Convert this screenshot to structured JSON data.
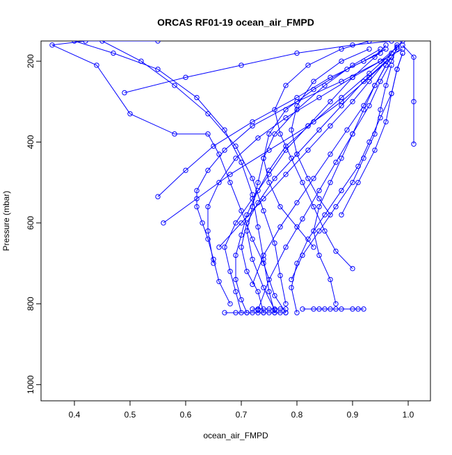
{
  "chart_data": {
    "type": "scatter",
    "title": "ORCAS RF01-19 ocean_air_FMPD",
    "xlabel": "ocean_air_FMPD",
    "ylabel": "Pressure (mbar)",
    "xlim": [
      0.34,
      1.04
    ],
    "ylim": [
      1040,
      150
    ],
    "y_reversed": true,
    "grid": false,
    "legend": "none",
    "marker": "open-circle",
    "connected_points": true,
    "color": "#0000ff",
    "x_ticks": [
      "0.4",
      "0.5",
      "0.6",
      "0.7",
      "0.8",
      "0.9",
      "1.0"
    ],
    "x_tick_values": [
      0.4,
      0.5,
      0.6,
      0.7,
      0.8,
      0.9,
      1.0
    ],
    "y_ticks": [
      "200",
      "400",
      "600",
      "800",
      "1000"
    ],
    "y_tick_values": [
      200,
      400,
      600,
      800,
      1000
    ],
    "series": [
      {
        "values": [
          [
            0.78,
            822
          ],
          [
            0.76,
            780
          ],
          [
            0.74,
            700
          ],
          [
            0.72,
            640
          ],
          [
            0.7,
            570
          ],
          [
            0.68,
            500
          ],
          [
            0.66,
            430
          ],
          [
            0.64,
            380
          ],
          [
            0.58,
            380
          ],
          [
            0.5,
            330
          ],
          [
            0.44,
            210
          ],
          [
            0.36,
            160
          ],
          [
            0.42,
            150
          ],
          [
            0.55,
            150
          ]
        ]
      },
      {
        "values": [
          [
            0.73,
            815
          ],
          [
            0.75,
            740
          ],
          [
            0.78,
            660
          ],
          [
            0.81,
            590
          ],
          [
            0.84,
            520
          ],
          [
            0.87,
            450
          ],
          [
            0.9,
            380
          ],
          [
            0.93,
            310
          ],
          [
            0.95,
            250
          ],
          [
            0.97,
            200
          ],
          [
            0.98,
            165
          ],
          [
            0.99,
            150
          ]
        ]
      },
      {
        "values": [
          [
            0.7,
            822
          ],
          [
            0.69,
            770
          ],
          [
            0.68,
            720
          ],
          [
            0.67,
            660
          ],
          [
            0.69,
            600
          ],
          [
            0.72,
            540
          ],
          [
            0.75,
            480
          ],
          [
            0.78,
            420
          ],
          [
            0.82,
            360
          ],
          [
            0.86,
            300
          ],
          [
            0.9,
            240
          ],
          [
            0.94,
            190
          ],
          [
            0.96,
            160
          ]
        ]
      },
      {
        "values": [
          [
            0.76,
            815
          ],
          [
            0.74,
            760
          ],
          [
            0.72,
            690
          ],
          [
            0.71,
            620
          ],
          [
            0.72,
            560
          ],
          [
            0.73,
            500
          ],
          [
            0.74,
            440
          ],
          [
            0.76,
            380
          ],
          [
            0.8,
            320
          ],
          [
            0.85,
            260
          ],
          [
            0.9,
            210
          ],
          [
            0.95,
            170
          ]
        ]
      },
      {
        "values": [
          [
            0.68,
            800
          ],
          [
            0.66,
            745
          ],
          [
            0.65,
            690
          ],
          [
            0.64,
            640
          ],
          [
            0.63,
            600
          ],
          [
            0.62,
            560
          ],
          [
            0.62,
            520
          ],
          [
            0.64,
            470
          ],
          [
            0.67,
            420
          ],
          [
            0.72,
            360
          ],
          [
            0.8,
            300
          ],
          [
            0.88,
            250
          ],
          [
            0.95,
            200
          ],
          [
            0.99,
            170
          ]
        ]
      },
      {
        "values": [
          [
            0.8,
            822
          ],
          [
            0.79,
            760
          ],
          [
            0.8,
            700
          ],
          [
            0.82,
            640
          ],
          [
            0.85,
            580
          ],
          [
            0.88,
            520
          ],
          [
            0.91,
            460
          ],
          [
            0.93,
            400
          ],
          [
            0.95,
            340
          ],
          [
            0.97,
            280
          ],
          [
            0.98,
            220
          ],
          [
            0.99,
            180
          ]
        ]
      },
      {
        "values": [
          [
            0.9,
            713
          ],
          [
            0.87,
            670
          ],
          [
            0.85,
            620
          ],
          [
            0.83,
            560
          ],
          [
            0.81,
            500
          ],
          [
            0.79,
            440
          ],
          [
            0.77,
            380
          ],
          [
            0.76,
            320
          ],
          [
            0.78,
            260
          ],
          [
            0.82,
            210
          ],
          [
            0.88,
            170
          ],
          [
            0.93,
            150
          ]
        ]
      },
      {
        "values": [
          [
            0.72,
            752
          ],
          [
            0.74,
            680
          ],
          [
            0.77,
            610
          ],
          [
            0.8,
            550
          ],
          [
            0.83,
            490
          ],
          [
            0.86,
            430
          ],
          [
            0.89,
            370
          ],
          [
            0.92,
            310
          ],
          [
            0.94,
            260
          ],
          [
            0.96,
            210
          ],
          [
            0.98,
            170
          ]
        ]
      },
      {
        "values": [
          [
            0.66,
            660
          ],
          [
            0.7,
            600
          ],
          [
            0.74,
            540
          ],
          [
            0.78,
            480
          ],
          [
            0.82,
            420
          ],
          [
            0.86,
            360
          ],
          [
            0.9,
            300
          ],
          [
            0.93,
            250
          ],
          [
            0.96,
            200
          ],
          [
            0.98,
            160
          ]
        ]
      },
      {
        "values": [
          [
            1.01,
            405
          ],
          [
            1.01,
            300
          ],
          [
            1.01,
            190
          ],
          [
            0.99,
            160
          ]
        ]
      },
      {
        "values": [
          [
            0.55,
            535
          ],
          [
            0.6,
            470
          ],
          [
            0.65,
            410
          ],
          [
            0.72,
            350
          ],
          [
            0.8,
            290
          ],
          [
            0.86,
            240
          ],
          [
            0.92,
            200
          ],
          [
            0.96,
            170
          ]
        ]
      },
      {
        "values": [
          [
            0.56,
            600
          ],
          [
            0.62,
            540
          ],
          [
            0.68,
            480
          ],
          [
            0.75,
            420
          ],
          [
            0.82,
            360
          ],
          [
            0.88,
            300
          ],
          [
            0.93,
            240
          ],
          [
            0.97,
            190
          ]
        ]
      },
      {
        "values": [
          [
            0.49,
            278
          ],
          [
            0.6,
            240
          ],
          [
            0.7,
            210
          ],
          [
            0.8,
            180
          ],
          [
            0.9,
            160
          ],
          [
            0.97,
            150
          ]
        ]
      },
      {
        "values": [
          [
            0.86,
            580
          ],
          [
            0.84,
            540
          ],
          [
            0.82,
            490
          ],
          [
            0.8,
            430
          ],
          [
            0.79,
            370
          ],
          [
            0.8,
            310
          ],
          [
            0.83,
            250
          ],
          [
            0.88,
            200
          ],
          [
            0.93,
            170
          ]
        ]
      },
      {
        "values": [
          [
            0.83,
            660
          ],
          [
            0.8,
            610
          ],
          [
            0.77,
            560
          ],
          [
            0.75,
            500
          ],
          [
            0.74,
            440
          ],
          [
            0.75,
            380
          ],
          [
            0.78,
            320
          ],
          [
            0.83,
            270
          ],
          [
            0.89,
            220
          ],
          [
            0.95,
            180
          ]
        ]
      },
      {
        "values": [
          [
            0.88,
            580
          ],
          [
            0.91,
            500
          ],
          [
            0.94,
            420
          ],
          [
            0.96,
            350
          ],
          [
            0.97,
            280
          ],
          [
            0.98,
            220
          ],
          [
            0.99,
            180
          ]
        ]
      },
      {
        "values": [
          [
            0.71,
            822
          ],
          [
            0.7,
            790
          ],
          [
            0.69,
            740
          ],
          [
            0.69,
            680
          ],
          [
            0.7,
            630
          ],
          [
            0.71,
            580
          ],
          [
            0.73,
            520
          ],
          [
            0.75,
            470
          ],
          [
            0.78,
            410
          ],
          [
            0.83,
            350
          ],
          [
            0.88,
            290
          ],
          [
            0.93,
            230
          ],
          [
            0.97,
            180
          ]
        ]
      },
      {
        "values": [
          [
            0.74,
            822
          ],
          [
            0.73,
            770
          ],
          [
            0.71,
            720
          ],
          [
            0.7,
            660
          ],
          [
            0.71,
            600
          ],
          [
            0.73,
            550
          ],
          [
            0.76,
            490
          ],
          [
            0.8,
            430
          ],
          [
            0.84,
            370
          ],
          [
            0.88,
            310
          ],
          [
            0.92,
            250
          ],
          [
            0.96,
            200
          ]
        ]
      },
      {
        "values": [
          [
            0.45,
            150
          ],
          [
            0.52,
            200
          ],
          [
            0.58,
            260
          ],
          [
            0.64,
            330
          ],
          [
            0.69,
            410
          ],
          [
            0.72,
            490
          ],
          [
            0.74,
            570
          ],
          [
            0.76,
            650
          ],
          [
            0.77,
            730
          ],
          [
            0.78,
            800
          ]
        ]
      },
      {
        "values": [
          [
            0.4,
            150
          ],
          [
            0.47,
            180
          ],
          [
            0.55,
            220
          ],
          [
            0.62,
            290
          ],
          [
            0.67,
            370
          ],
          [
            0.7,
            450
          ],
          [
            0.72,
            530
          ],
          [
            0.73,
            610
          ],
          [
            0.74,
            690
          ],
          [
            0.75,
            770
          ],
          [
            0.76,
            822
          ]
        ]
      },
      {
        "values": [
          [
            0.81,
            813
          ],
          [
            0.83,
            813
          ],
          [
            0.84,
            813
          ],
          [
            0.85,
            813
          ],
          [
            0.86,
            813
          ],
          [
            0.87,
            813
          ],
          [
            0.88,
            813
          ],
          [
            0.9,
            813
          ],
          [
            0.91,
            813
          ],
          [
            0.92,
            813
          ]
        ]
      },
      {
        "values": [
          [
            0.67,
            822
          ],
          [
            0.69,
            822
          ],
          [
            0.71,
            822
          ],
          [
            0.72,
            822
          ],
          [
            0.73,
            822
          ],
          [
            0.74,
            822
          ],
          [
            0.75,
            822
          ],
          [
            0.76,
            822
          ],
          [
            0.77,
            822
          ],
          [
            0.78,
            822
          ]
        ]
      },
      {
        "values": [
          [
            0.72,
            813
          ],
          [
            0.73,
            813
          ],
          [
            0.74,
            813
          ],
          [
            0.75,
            813
          ],
          [
            0.76,
            813
          ],
          [
            0.77,
            813
          ],
          [
            0.78,
            813
          ]
        ]
      },
      {
        "values": [
          [
            0.87,
            800
          ],
          [
            0.86,
            740
          ],
          [
            0.84,
            680
          ],
          [
            0.83,
            620
          ],
          [
            0.84,
            560
          ],
          [
            0.86,
            500
          ],
          [
            0.88,
            440
          ],
          [
            0.9,
            380
          ],
          [
            0.92,
            320
          ],
          [
            0.94,
            260
          ],
          [
            0.96,
            210
          ]
        ]
      },
      {
        "values": [
          [
            0.65,
            700
          ],
          [
            0.64,
            620
          ],
          [
            0.64,
            560
          ],
          [
            0.66,
            500
          ],
          [
            0.69,
            440
          ],
          [
            0.73,
            390
          ],
          [
            0.78,
            340
          ],
          [
            0.84,
            290
          ],
          [
            0.9,
            240
          ],
          [
            0.95,
            200
          ],
          [
            0.98,
            165
          ]
        ]
      },
      {
        "values": [
          [
            0.79,
            740
          ],
          [
            0.81,
            680
          ],
          [
            0.84,
            620
          ],
          [
            0.87,
            560
          ],
          [
            0.9,
            500
          ],
          [
            0.92,
            440
          ],
          [
            0.94,
            380
          ],
          [
            0.95,
            320
          ],
          [
            0.96,
            260
          ],
          [
            0.97,
            210
          ]
        ]
      }
    ]
  }
}
